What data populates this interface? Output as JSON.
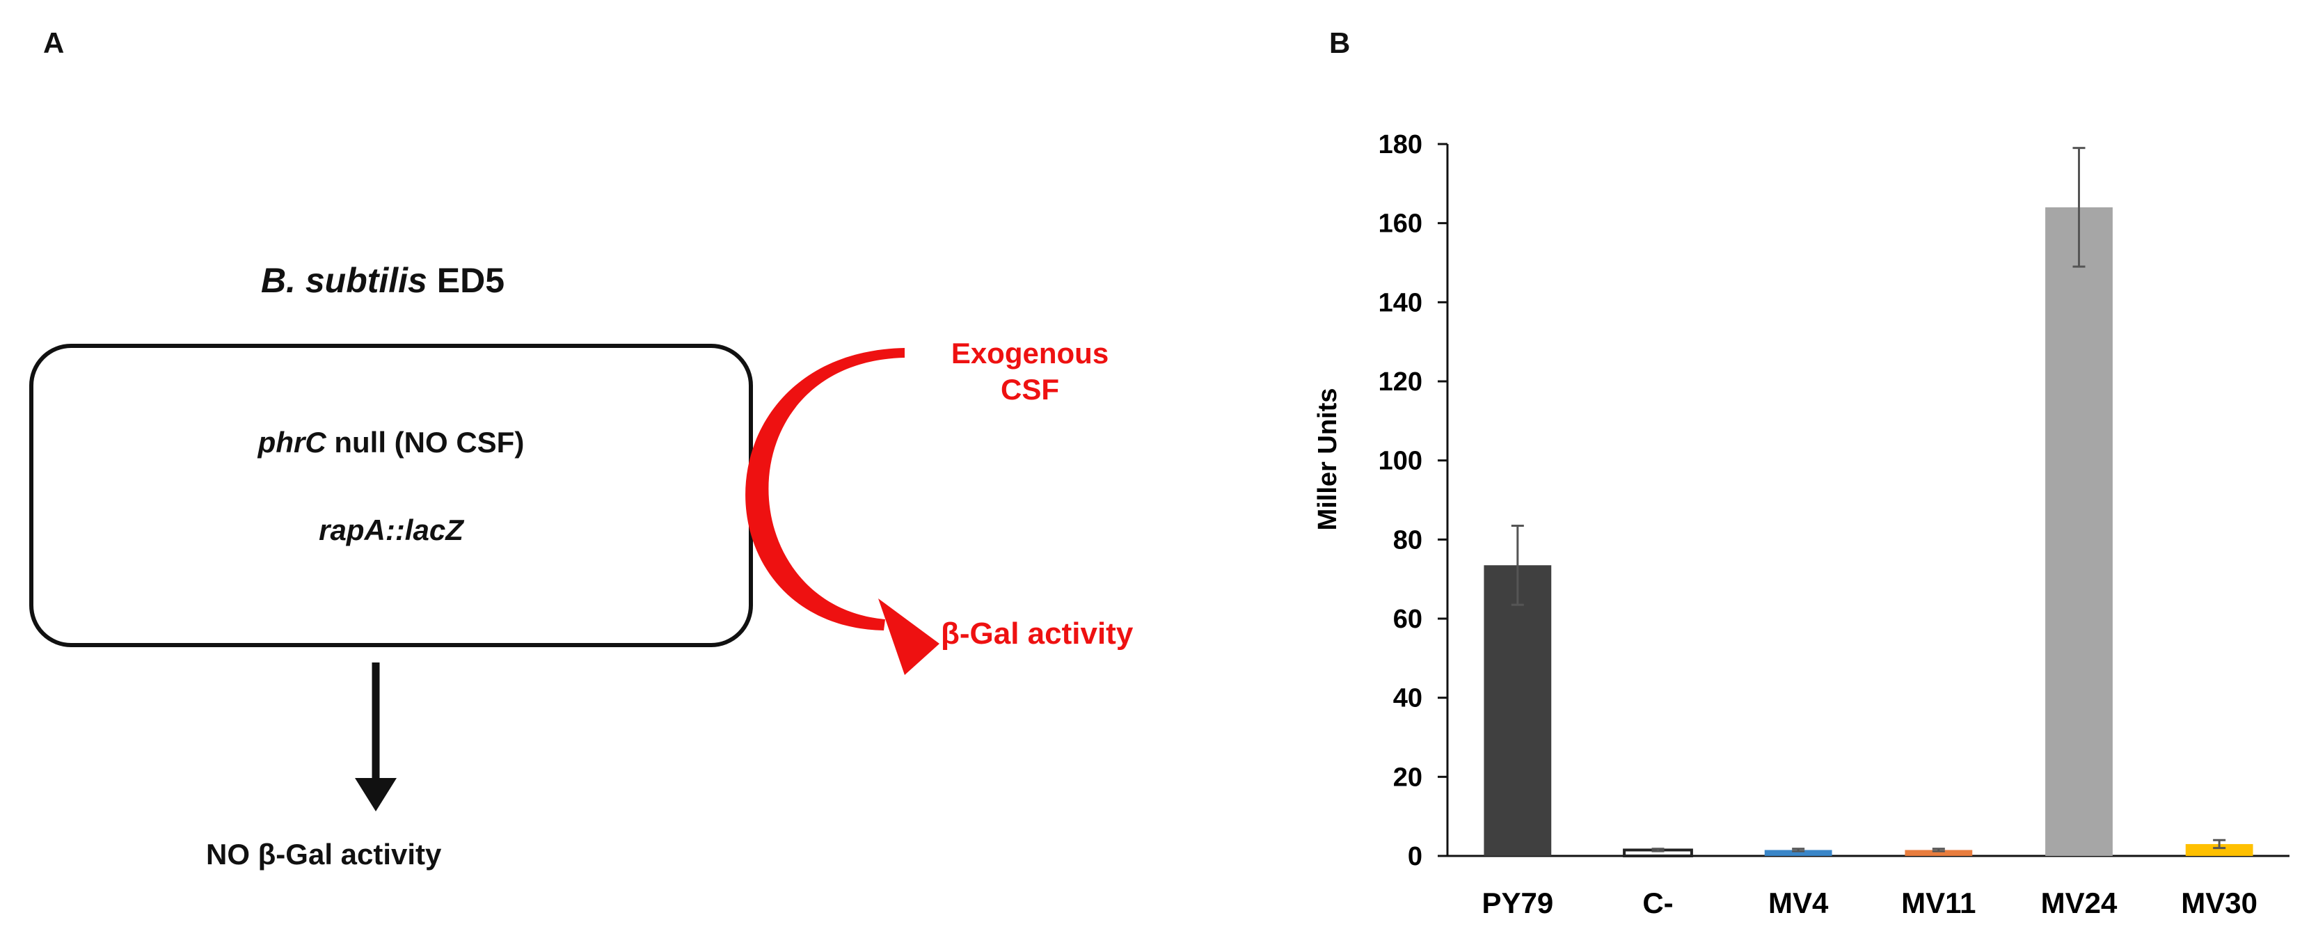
{
  "panel_a": {
    "label": "A",
    "title_italic": "B. subtilis",
    "title_rest": " ED5",
    "box": {
      "line1_italic": "phrC",
      "line1_rest": " null (NO CSF)",
      "line2_italic": "rapA::lacZ"
    },
    "bottom_text": "NO β-Gal activity",
    "exogenous_line1": "Exogenous",
    "exogenous_line2": "CSF",
    "beta_gal_text": "β-Gal activity",
    "colors": {
      "arrow_black": "#111111",
      "arrow_red": "#ee1111"
    }
  },
  "panel_b": {
    "label": "B"
  },
  "chart_data": {
    "type": "bar",
    "title": "",
    "xlabel": "",
    "ylabel": "Miller Units",
    "ylim": [
      0,
      180
    ],
    "yticks": [
      0,
      20,
      40,
      60,
      80,
      100,
      120,
      140,
      160,
      180
    ],
    "categories": [
      "PY79",
      "C-",
      "MV4",
      "MV11",
      "MV24",
      "MV30"
    ],
    "values": [
      73.5,
      1.5,
      1.5,
      1.5,
      164,
      3
    ],
    "errors": [
      10,
      0.3,
      0.3,
      0.3,
      15,
      1
    ],
    "colors": [
      "#404040",
      "#ffffff",
      "#3a86c8",
      "#e87d3e",
      "#a6a6a6",
      "#ffc000"
    ],
    "outline": [
      "none",
      "#222222",
      "none",
      "none",
      "none",
      "none"
    ],
    "grid": false
  }
}
